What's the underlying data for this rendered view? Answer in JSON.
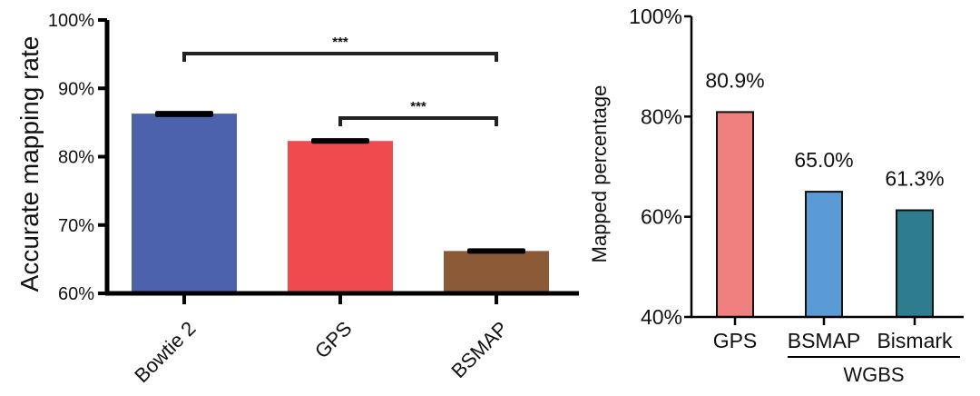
{
  "chart_data": [
    {
      "type": "bar",
      "categories": [
        "Bowtie 2",
        "GPS",
        "BSMAP"
      ],
      "values": [
        86.3,
        82.3,
        66.2
      ],
      "error_ranges": [
        [
          85.8,
          86.7
        ],
        [
          81.9,
          82.7
        ],
        [
          65.8,
          66.6
        ]
      ],
      "colors": [
        "#4c62ad",
        "#ef4b4f",
        "#8b5a37"
      ],
      "ylabel": "Accurate mapping rate",
      "ylim": [
        60,
        100
      ],
      "yticks": [
        "60%",
        "70%",
        "80%",
        "90%",
        "100%"
      ],
      "ytick_values": [
        60,
        70,
        80,
        90,
        100
      ],
      "significance": [
        {
          "from": "Bowtie 2",
          "to": "BSMAP",
          "label": "***"
        },
        {
          "from": "GPS",
          "to": "BSMAP",
          "label": "***"
        }
      ]
    },
    {
      "type": "bar",
      "categories": [
        "GPS",
        "BSMAP",
        "Bismark"
      ],
      "values": [
        80.9,
        65.0,
        61.3
      ],
      "data_labels": [
        "80.9%",
        "65.0%",
        "61.3%"
      ],
      "colors": [
        "#f08080",
        "#5b9bd5",
        "#2e7d8e"
      ],
      "ylabel": "Mapped percentage",
      "ylim": [
        40,
        100
      ],
      "yticks": [
        "40%",
        "60%",
        "80%",
        "100%"
      ],
      "ytick_values": [
        40,
        60,
        80,
        100
      ],
      "group_label": "WGBS",
      "group_members": [
        "BSMAP",
        "Bismark"
      ]
    }
  ]
}
